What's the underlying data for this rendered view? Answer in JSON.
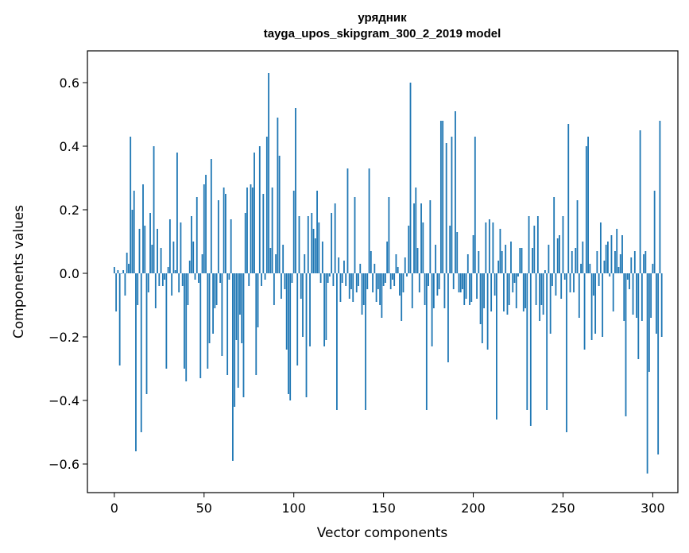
{
  "chart_data": {
    "type": "bar",
    "title": "урядник",
    "subtitle": "tayga_upos_skipgram_300_2_2019 model",
    "xlabel": "Vector components",
    "ylabel": "Components values",
    "xlim": [
      -15,
      314
    ],
    "ylim": [
      -0.69,
      0.7
    ],
    "xticks": [
      0,
      50,
      100,
      150,
      200,
      250,
      300
    ],
    "xtick_labels": [
      "0",
      "50",
      "100",
      "150",
      "200",
      "250",
      "300"
    ],
    "yticks": [
      -0.6,
      -0.4,
      -0.2,
      0.0,
      0.2,
      0.4,
      0.6
    ],
    "ytick_labels": [
      "−0.6",
      "−0.4",
      "−0.2",
      "0.0",
      "0.2",
      "0.4",
      "0.6"
    ],
    "bar_color": "#1f77b4",
    "values": [
      0.02,
      -0.12,
      0.01,
      -0.29,
      0.0,
      0.01,
      -0.07,
      0.065,
      0.03,
      0.43,
      0.2,
      0.26,
      -0.56,
      -0.1,
      0.14,
      -0.5,
      0.28,
      0.15,
      -0.38,
      -0.06,
      0.19,
      0.09,
      0.4,
      -0.11,
      0.14,
      -0.04,
      0.08,
      -0.04,
      -0.02,
      -0.3,
      0.02,
      0.17,
      -0.07,
      0.1,
      0.01,
      0.38,
      -0.06,
      0.16,
      -0.04,
      -0.3,
      -0.34,
      -0.1,
      0.04,
      0.18,
      0.1,
      -0.02,
      0.24,
      -0.03,
      -0.33,
      0.06,
      0.28,
      0.31,
      -0.3,
      -0.22,
      0.36,
      -0.19,
      -0.11,
      -0.1,
      0.23,
      -0.03,
      -0.26,
      0.27,
      0.25,
      -0.32,
      -0.02,
      0.17,
      -0.59,
      -0.42,
      -0.21,
      -0.36,
      -0.13,
      -0.22,
      -0.39,
      0.19,
      0.27,
      -0.04,
      0.28,
      0.27,
      0.38,
      -0.32,
      -0.17,
      0.4,
      -0.04,
      0.25,
      -0.02,
      0.43,
      0.63,
      0.08,
      0.27,
      -0.1,
      0.06,
      0.49,
      0.37,
      -0.08,
      0.09,
      -0.05,
      -0.24,
      -0.38,
      -0.4,
      -0.03,
      0.26,
      0.52,
      -0.29,
      0.18,
      -0.08,
      -0.2,
      0.06,
      -0.39,
      0.18,
      -0.23,
      0.19,
      0.14,
      0.11,
      0.26,
      0.16,
      -0.03,
      0.1,
      -0.23,
      -0.21,
      -0.03,
      -0.01,
      0.19,
      -0.04,
      0.22,
      -0.43,
      0.05,
      -0.09,
      -0.03,
      0.04,
      -0.04,
      0.33,
      -0.08,
      -0.05,
      -0.09,
      0.24,
      -0.06,
      -0.04,
      0.03,
      -0.13,
      -0.1,
      -0.43,
      -0.05,
      0.33,
      0.07,
      -0.06,
      0.03,
      -0.09,
      -0.05,
      -0.1,
      -0.14,
      -0.04,
      -0.03,
      0.1,
      0.24,
      -0.05,
      -0.02,
      -0.04,
      0.06,
      0.02,
      -0.07,
      -0.15,
      -0.06,
      0.05,
      -0.01,
      0.15,
      0.6,
      -0.11,
      0.22,
      0.27,
      0.08,
      -0.06,
      0.22,
      0.16,
      -0.1,
      -0.43,
      -0.04,
      0.23,
      -0.23,
      -0.11,
      0.09,
      -0.07,
      -0.05,
      0.48,
      0.48,
      -0.11,
      0.41,
      -0.28,
      0.15,
      0.43,
      -0.05,
      0.51,
      0.13,
      -0.06,
      -0.06,
      -0.05,
      -0.1,
      -0.08,
      0.06,
      -0.1,
      -0.09,
      0.12,
      0.43,
      -0.08,
      0.07,
      -0.16,
      -0.22,
      -0.11,
      0.16,
      -0.24,
      0.17,
      -0.12,
      0.16,
      -0.07,
      -0.46,
      0.04,
      0.14,
      0.07,
      -0.12,
      0.09,
      -0.13,
      -0.1,
      0.1,
      -0.06,
      -0.03,
      -0.11,
      -0.01,
      0.08,
      0.08,
      -0.12,
      -0.11,
      -0.43,
      0.18,
      -0.48,
      0.08,
      0.15,
      -0.1,
      0.18,
      -0.15,
      -0.1,
      -0.13,
      0.01,
      -0.43,
      0.09,
      -0.19,
      -0.04,
      0.24,
      -0.07,
      0.11,
      0.12,
      -0.08,
      0.18,
      -0.02,
      -0.5,
      0.47,
      -0.06,
      0.07,
      -0.06,
      0.08,
      0.23,
      -0.14,
      0.03,
      0.1,
      -0.24,
      0.4,
      0.43,
      0.03,
      -0.21,
      -0.07,
      -0.19,
      0.07,
      -0.04,
      0.16,
      -0.2,
      0.04,
      0.09,
      0.1,
      -0.01,
      0.12,
      -0.12,
      0.07,
      0.14,
      0.02,
      0.06,
      0.12,
      -0.15,
      -0.45,
      -0.02,
      -0.05,
      0.05,
      -0.13,
      0.07,
      -0.14,
      -0.27,
      0.45,
      -0.15,
      0.06,
      0.07,
      -0.63,
      -0.31,
      -0.14,
      0.03,
      0.26,
      -0.19,
      -0.57,
      0.48,
      -0.2
    ]
  }
}
